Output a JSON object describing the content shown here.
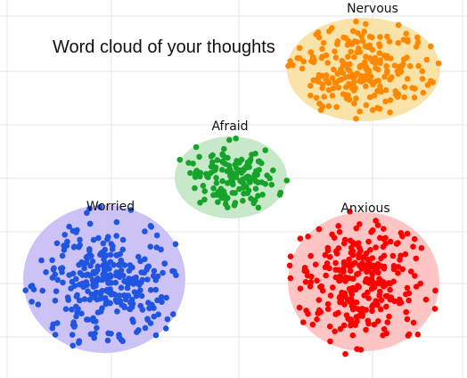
{
  "title": "Word cloud of your thoughts",
  "clusters": [
    {
      "label": "Nervous",
      "fill": "#f9e3a8",
      "dot": "#ff8800"
    },
    {
      "label": "Afraid",
      "fill": "#c8e9c9",
      "dot": "#16a32a"
    },
    {
      "label": "Worried",
      "fill": "#cdc2f6",
      "dot": "#1f55e0"
    },
    {
      "label": "Anxious",
      "fill": "#ffc4c4",
      "dot": "#ff0000"
    }
  ]
}
